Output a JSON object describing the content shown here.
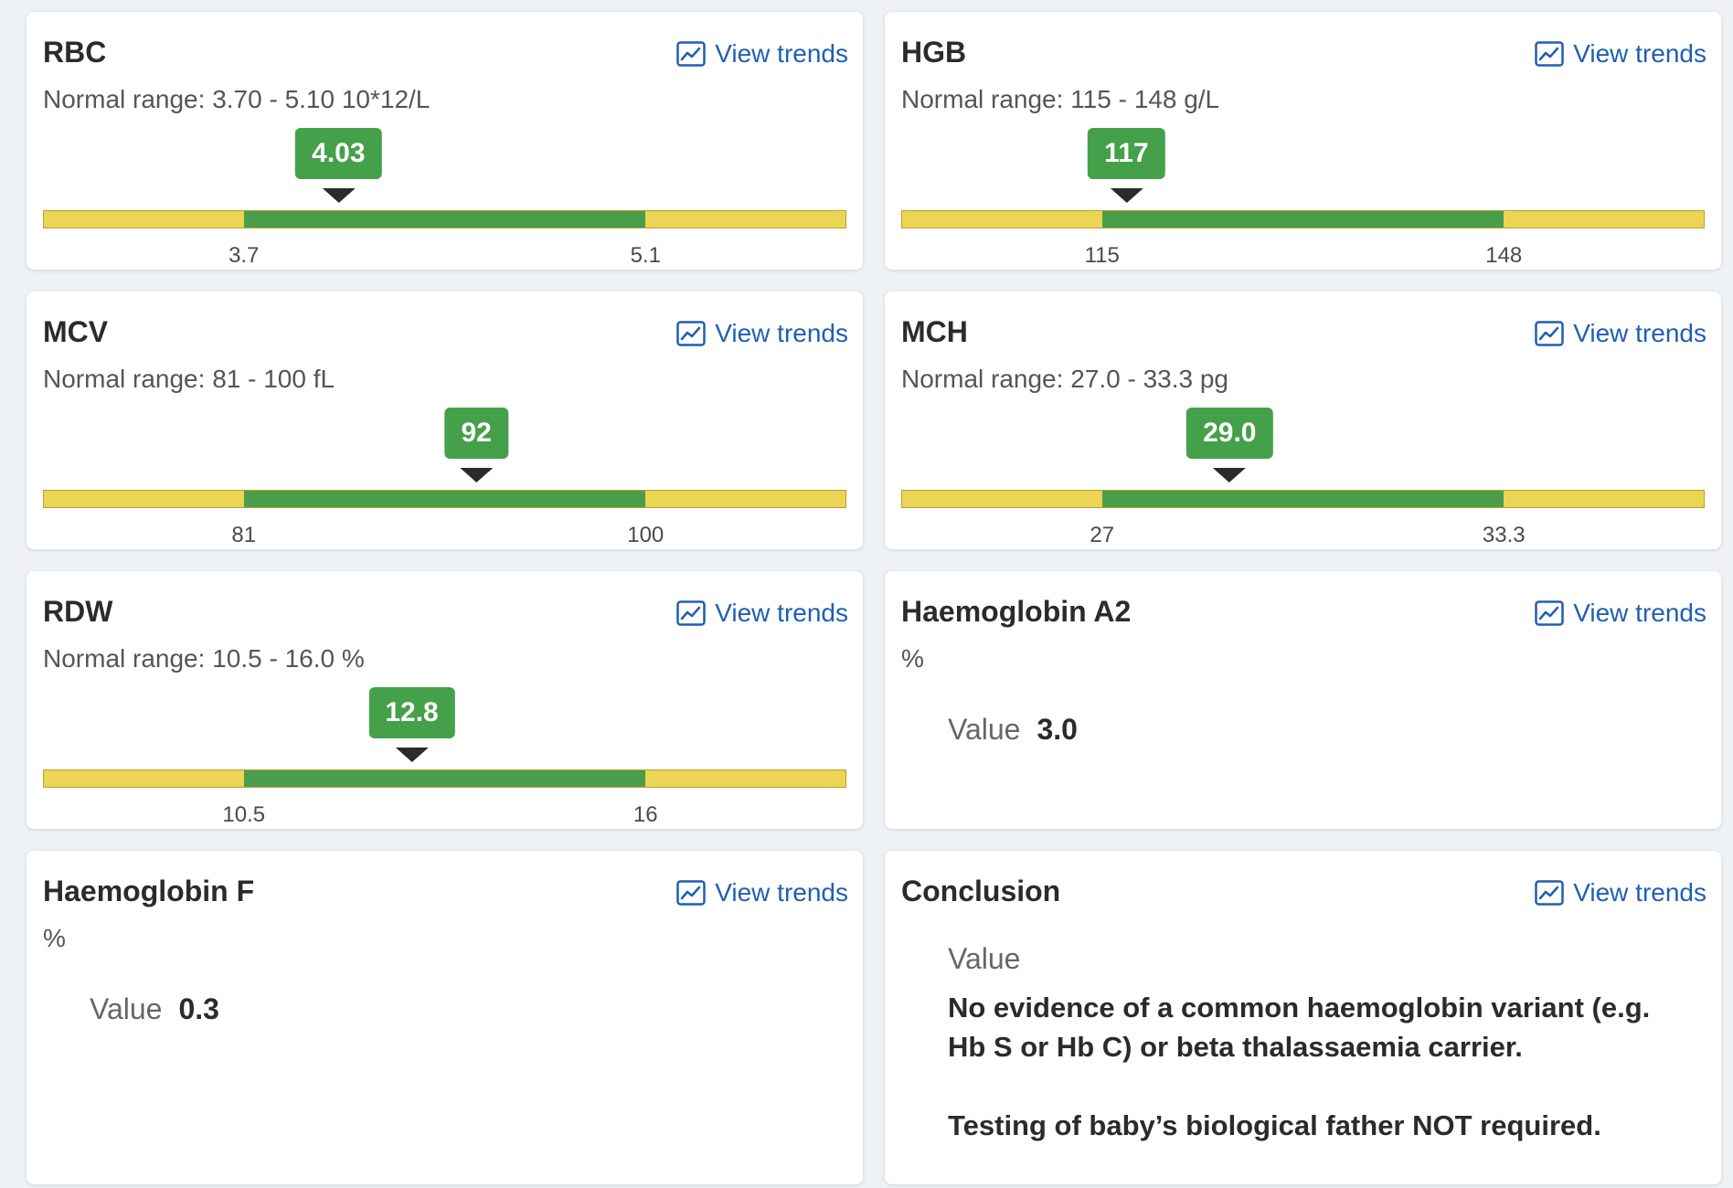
{
  "trend_label": "View trends",
  "range_prefix": "Normal range:",
  "value_label": "Value",
  "colors": {
    "normal": "#4a9e4b",
    "out_of_range": "#ecd454",
    "link": "#1f5fb3",
    "marker_badge": "#45a04a"
  },
  "icons": {
    "trend": "trend-chart-icon"
  },
  "cards": {
    "rbc": {
      "title": "RBC",
      "range": "3.70 - 5.10 10*12/L",
      "value": "4.03",
      "low": 3.7,
      "high": 5.1,
      "low_label": "3.7",
      "high_label": "5.1"
    },
    "hgb": {
      "title": "HGB",
      "range": "115 - 148 g/L",
      "value": "117",
      "low": 115,
      "high": 148,
      "low_label": "115",
      "high_label": "148"
    },
    "mcv": {
      "title": "MCV",
      "range": "81 - 100 fL",
      "value": "92",
      "low": 81,
      "high": 100,
      "low_label": "81",
      "high_label": "100"
    },
    "mch": {
      "title": "MCH",
      "range": "27.0 - 33.3 pg",
      "value": "29.0",
      "low": 27.0,
      "high": 33.3,
      "low_label": "27",
      "high_label": "33.3"
    },
    "rdw": {
      "title": "RDW",
      "range": "10.5 - 16.0 %",
      "value": "12.8",
      "low": 10.5,
      "high": 16.0,
      "low_label": "10.5",
      "high_label": "16"
    },
    "hba2": {
      "title": "Haemoglobin A2",
      "unit": "%",
      "value": "3.0"
    },
    "hbf": {
      "title": "Haemoglobin F",
      "unit": "%",
      "value": "0.3"
    },
    "conclusion": {
      "title": "Conclusion",
      "line1": "No evidence of a common haemoglobin variant (e.g. Hb S or Hb C) or beta thalassaemia carrier.",
      "line2": "Testing of baby’s biological father NOT required."
    }
  }
}
